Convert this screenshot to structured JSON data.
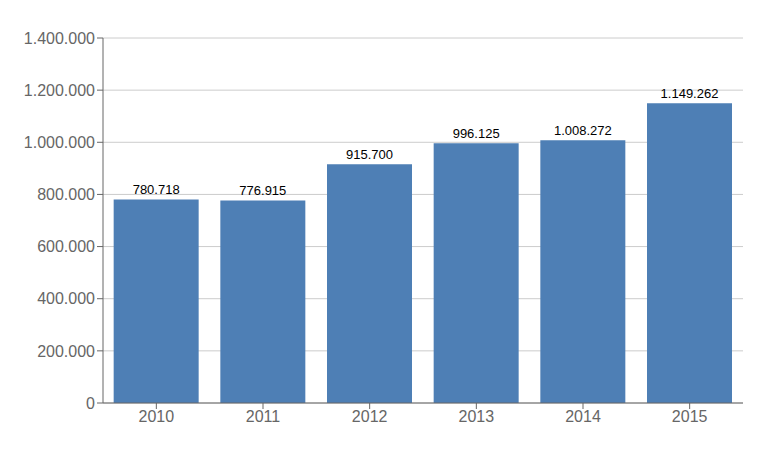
{
  "chart_data": {
    "type": "bar",
    "categories": [
      "2010",
      "2011",
      "2012",
      "2013",
      "2014",
      "2015"
    ],
    "values": [
      780718,
      776915,
      915700,
      996125,
      1008272,
      1149262
    ],
    "value_labels": [
      "780.718",
      "776.915",
      "915.700",
      "996.125",
      "1.008.272",
      "1.149.262"
    ],
    "data_labels": true,
    "color": "#4e7fb5",
    "ylim": [
      0,
      1400000
    ],
    "yticks": [
      0,
      {
        "value": 200000,
        "label": "200.000"
      },
      {
        "value": 400000,
        "label": "400.000"
      },
      {
        "value": 600000,
        "label": "600.000"
      },
      {
        "value": 800000,
        "label": "800.000"
      },
      {
        "value": 1000000,
        "label": "1.000.000"
      },
      {
        "value": 1200000,
        "label": "1.200.000"
      },
      {
        "value": 1400000,
        "label": "1.400.000"
      }
    ],
    "grid": true
  }
}
